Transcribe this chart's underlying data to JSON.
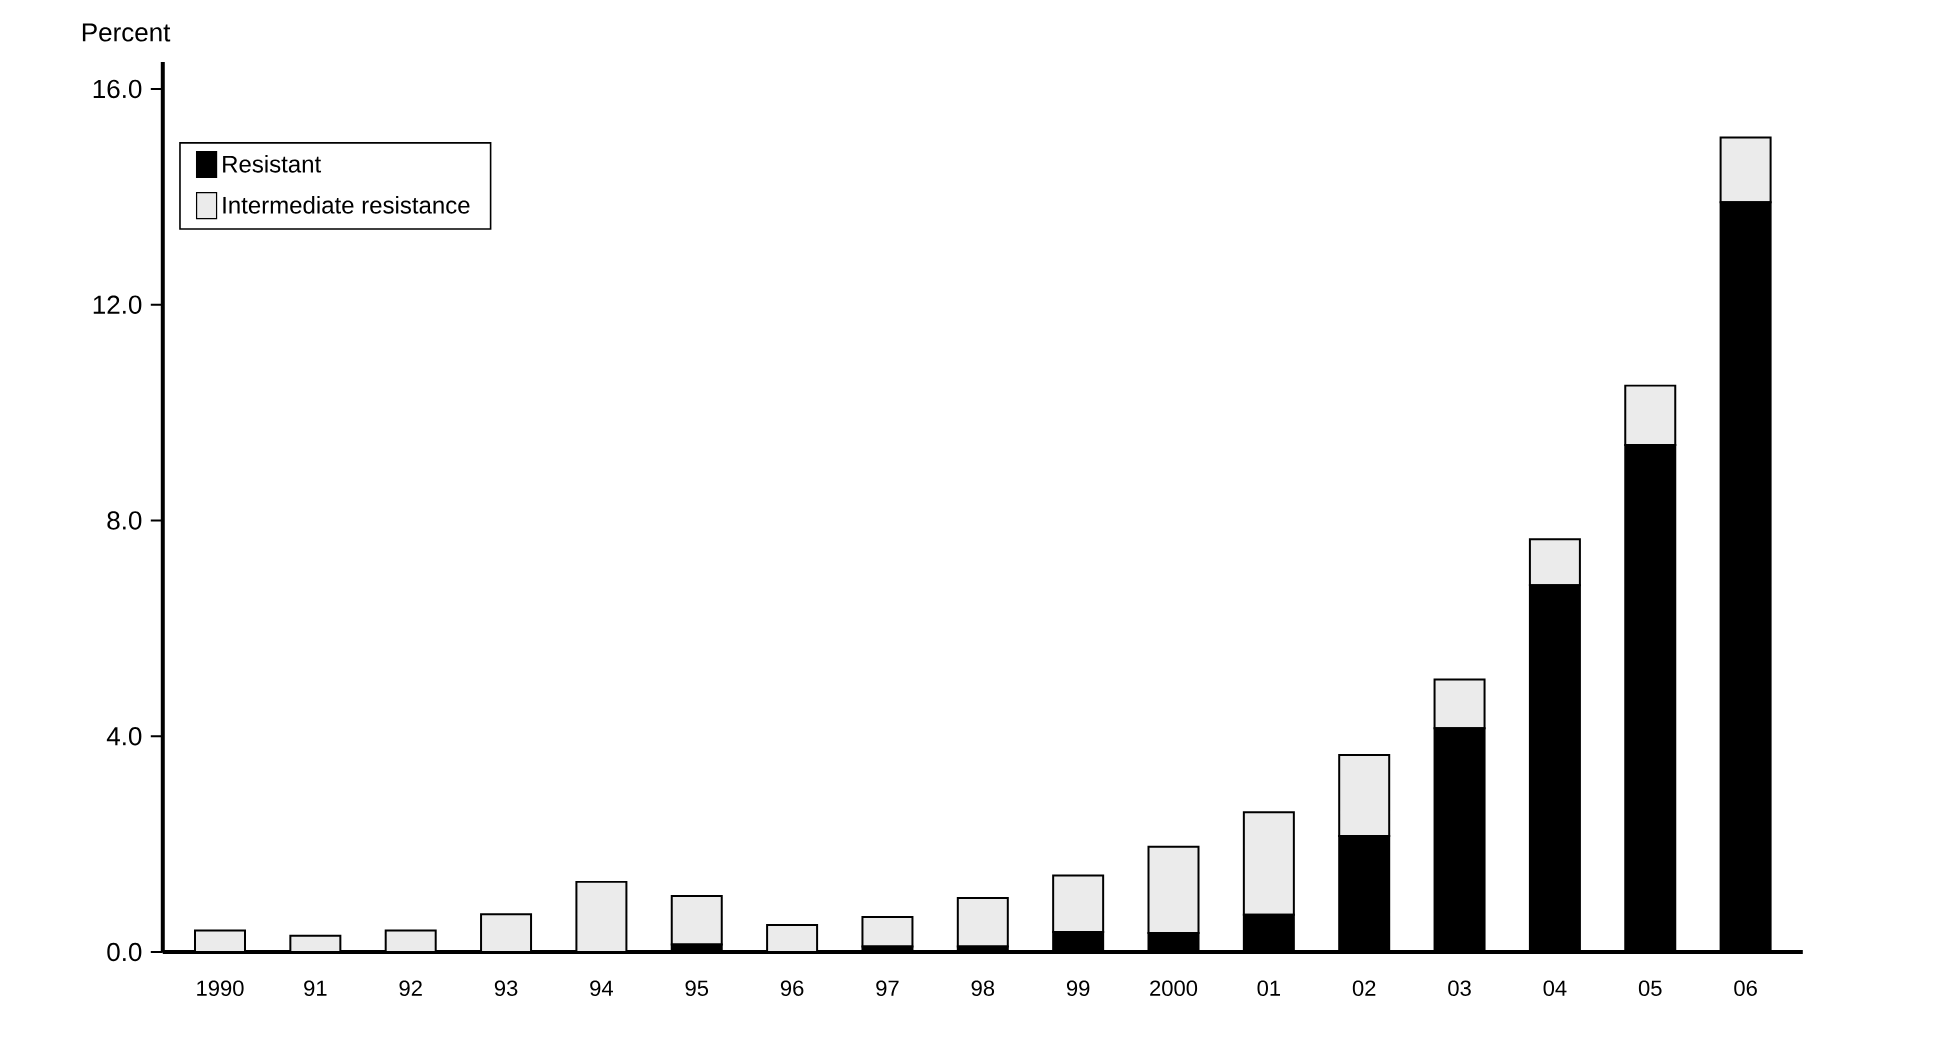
{
  "chart_data": {
    "type": "bar",
    "stacked": true,
    "ylabel": "Percent",
    "categories": [
      "1990",
      "91",
      "92",
      "93",
      "94",
      "95",
      "96",
      "97",
      "98",
      "99",
      "2000",
      "01",
      "02",
      "03",
      "04",
      "05",
      "06"
    ],
    "series": [
      {
        "name": "Resistant",
        "color": "#000000",
        "values": [
          0,
          0,
          0,
          0,
          0,
          0.14,
          0,
          0.1,
          0.1,
          0.37,
          0.35,
          0.69,
          2.15,
          4.15,
          6.8,
          9.4,
          13.9
        ]
      },
      {
        "name": "Intermediate resistance",
        "color": "#ebebeb",
        "values": [
          0.4,
          0.3,
          0.4,
          0.7,
          1.3,
          0.9,
          0.5,
          0.55,
          0.9,
          1.05,
          1.6,
          1.9,
          1.5,
          0.9,
          0.85,
          1.1,
          1.2
        ]
      }
    ],
    "ylim": [
      0,
      16.5
    ],
    "yticks": [
      {
        "value": 0,
        "label": "0.0"
      },
      {
        "value": 4,
        "label": "4.0"
      },
      {
        "value": 8,
        "label": "8.0"
      },
      {
        "value": 12,
        "label": "12.0"
      },
      {
        "value": 16,
        "label": "16.0"
      }
    ],
    "legend": "top left",
    "grid": false
  }
}
